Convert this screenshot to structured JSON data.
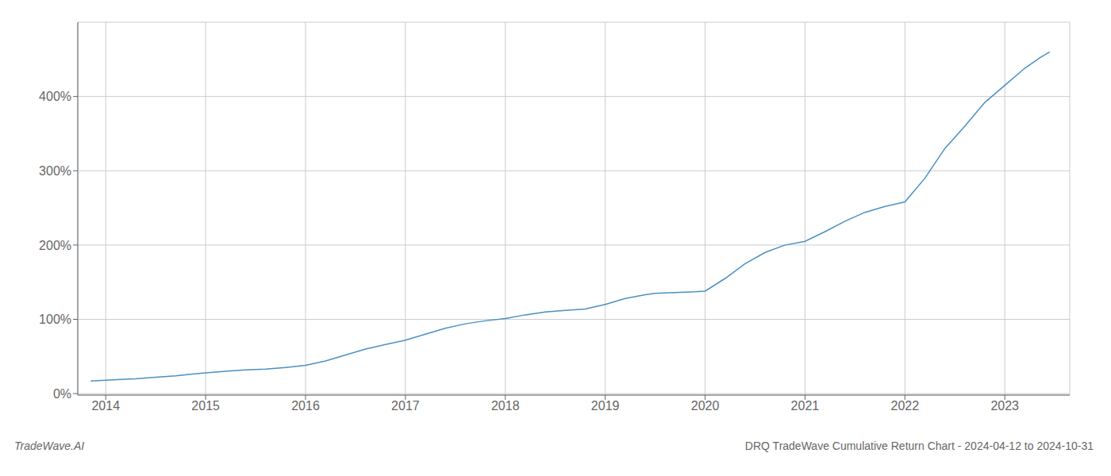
{
  "chart_data": {
    "type": "line",
    "title": "DRQ TradeWave Cumulative Return Chart - 2024-04-12 to 2024-10-31",
    "annotations": [
      "TradeWave.AI"
    ],
    "color": "#4a90c4",
    "grid": true,
    "xlim": [
      2013.72,
      2023.65
    ],
    "ylim": [
      -0.02,
      5.0
    ],
    "xticks": [
      2014,
      2015,
      2016,
      2017,
      2018,
      2019,
      2020,
      2021,
      2022,
      2023
    ],
    "yticks": [
      {
        "value": 0.0,
        "label": "0%"
      },
      {
        "value": 1.0,
        "label": "100%"
      },
      {
        "value": 2.0,
        "label": "200%"
      },
      {
        "value": 3.0,
        "label": "300%"
      },
      {
        "value": 4.0,
        "label": "400%"
      }
    ],
    "x": [
      2013.85,
      2014.0,
      2014.15,
      2014.3,
      2014.5,
      2014.7,
      2014.85,
      2015.0,
      2015.2,
      2015.4,
      2015.6,
      2015.8,
      2016.0,
      2016.2,
      2016.4,
      2016.6,
      2016.8,
      2017.0,
      2017.2,
      2017.4,
      2017.6,
      2017.8,
      2018.0,
      2018.2,
      2018.4,
      2018.6,
      2018.8,
      2019.0,
      2019.2,
      2019.4,
      2019.5,
      2019.7,
      2019.9,
      2020.0,
      2020.2,
      2020.4,
      2020.6,
      2020.8,
      2021.0,
      2021.2,
      2021.4,
      2021.6,
      2021.8,
      2022.0,
      2022.2,
      2022.4,
      2022.6,
      2022.8,
      2023.0,
      2023.2,
      2023.35,
      2023.45
    ],
    "values": [
      0.17,
      0.18,
      0.19,
      0.2,
      0.22,
      0.24,
      0.26,
      0.28,
      0.3,
      0.32,
      0.33,
      0.35,
      0.38,
      0.44,
      0.52,
      0.6,
      0.66,
      0.72,
      0.8,
      0.88,
      0.94,
      0.98,
      1.01,
      1.06,
      1.1,
      1.12,
      1.14,
      1.2,
      1.28,
      1.33,
      1.35,
      1.36,
      1.37,
      1.38,
      1.55,
      1.75,
      1.9,
      2.0,
      2.05,
      2.18,
      2.32,
      2.44,
      2.52,
      2.58,
      2.9,
      3.3,
      3.6,
      3.92,
      4.15,
      4.38,
      4.52,
      4.6
    ]
  }
}
